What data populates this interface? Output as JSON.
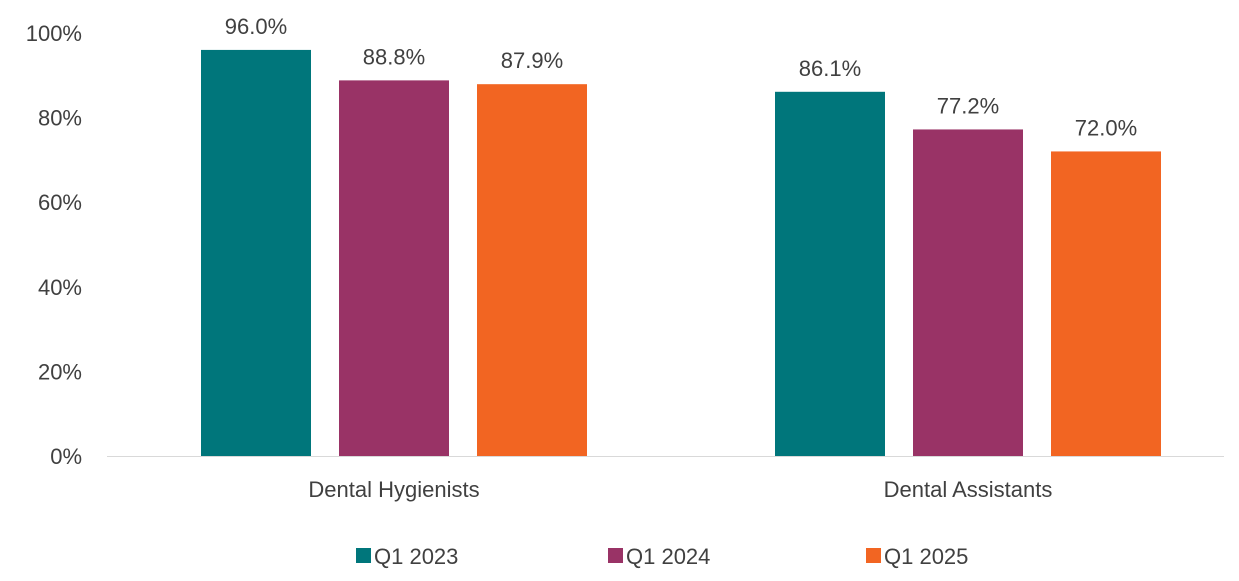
{
  "chart_data": {
    "type": "bar",
    "categories": [
      "Dental Hygienists",
      "Dental Assistants"
    ],
    "series": [
      {
        "name": "Q1 2023",
        "values": [
          96.0,
          86.1
        ],
        "labels": [
          "96.0%",
          "86.1%"
        ],
        "color": "#00767B"
      },
      {
        "name": "Q1 2024",
        "values": [
          88.8,
          77.2
        ],
        "labels": [
          "88.8%",
          "77.2%"
        ],
        "color": "#993366"
      },
      {
        "name": "Q1 2025",
        "values": [
          87.9,
          72.0
        ],
        "labels": [
          "87.9%",
          "72.0%"
        ],
        "color": "#F26522"
      }
    ],
    "ylim": [
      0,
      100
    ],
    "yticks": [
      0,
      20,
      40,
      60,
      80,
      100
    ],
    "ytick_labels": [
      "0%",
      "20%",
      "40%",
      "60%",
      "80%",
      "100%"
    ],
    "title": "",
    "xlabel": "",
    "ylabel": "",
    "legend_position": "bottom",
    "grid": false,
    "axis_color": "#D9D9D9"
  }
}
